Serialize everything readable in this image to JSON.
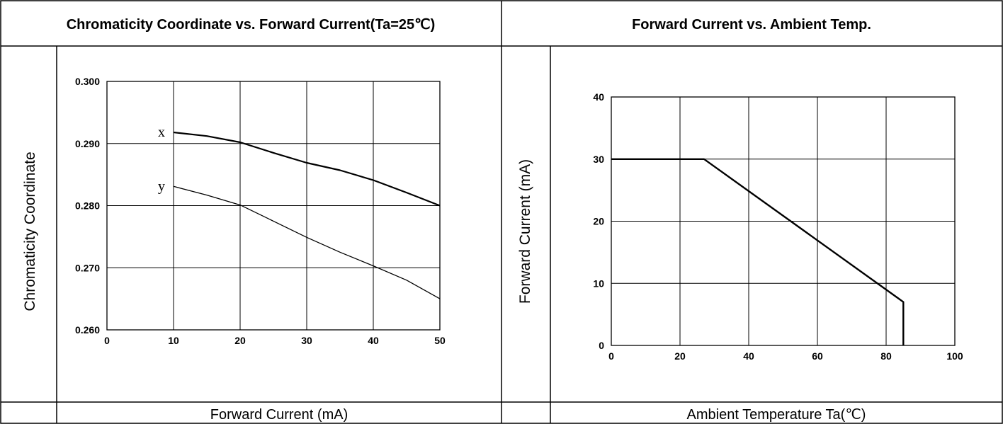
{
  "panels": [
    {
      "title": "Chromaticity Coordinate vs. Forward Current(Ta=25℃)",
      "ylabel": "Chromaticity Coordinate",
      "xlabel": "Forward Current (mA)"
    },
    {
      "title": "Forward Current vs. Ambient Temp.",
      "ylabel": "Forward Current (mA)",
      "xlabel": "Ambient Temperature Ta(℃)"
    }
  ],
  "chart_data": [
    {
      "type": "line",
      "title": "Chromaticity Coordinate vs. Forward Current(Ta=25℃)",
      "xlabel": "Forward Current (mA)",
      "ylabel": "Chromaticity Coordinate",
      "xlim": [
        0,
        50
      ],
      "ylim": [
        0.26,
        0.3
      ],
      "xticks": [
        0,
        10,
        20,
        30,
        40,
        50
      ],
      "yticks": [
        0.26,
        0.27,
        0.28,
        0.29,
        0.3
      ],
      "xtick_labels": [
        "0",
        "10",
        "20",
        "30",
        "40",
        "50"
      ],
      "ytick_labels": [
        "0.260",
        "0.270",
        "0.280",
        "0.290",
        "0.300"
      ],
      "grid": true,
      "series": [
        {
          "name": "x",
          "x": [
            10,
            15,
            20,
            25,
            30,
            35,
            40,
            45,
            50
          ],
          "y": [
            0.2918,
            0.2912,
            0.2902,
            0.2885,
            0.2869,
            0.2857,
            0.2841,
            0.2821,
            0.28
          ]
        },
        {
          "name": "y",
          "x": [
            10,
            15,
            20,
            25,
            30,
            35,
            40,
            45,
            50
          ],
          "y": [
            0.2831,
            0.2817,
            0.2801,
            0.2775,
            0.2749,
            0.2725,
            0.2703,
            0.268,
            0.265
          ]
        }
      ]
    },
    {
      "type": "line",
      "title": "Forward Current vs. Ambient Temp.",
      "xlabel": "Ambient Temperature Ta(℃)",
      "ylabel": "Forward Current (mA)",
      "xlim": [
        0,
        100
      ],
      "ylim": [
        0,
        40
      ],
      "xticks": [
        0,
        20,
        40,
        60,
        80,
        100
      ],
      "yticks": [
        0,
        10,
        20,
        30,
        40
      ],
      "xtick_labels": [
        "0",
        "20",
        "40",
        "60",
        "80",
        "100"
      ],
      "ytick_labels": [
        "0",
        "10",
        "20",
        "30",
        "40"
      ],
      "grid": true,
      "series": [
        {
          "x": [
            0,
            27,
            85,
            85
          ],
          "y": [
            30,
            30,
            7,
            0
          ]
        }
      ]
    }
  ]
}
